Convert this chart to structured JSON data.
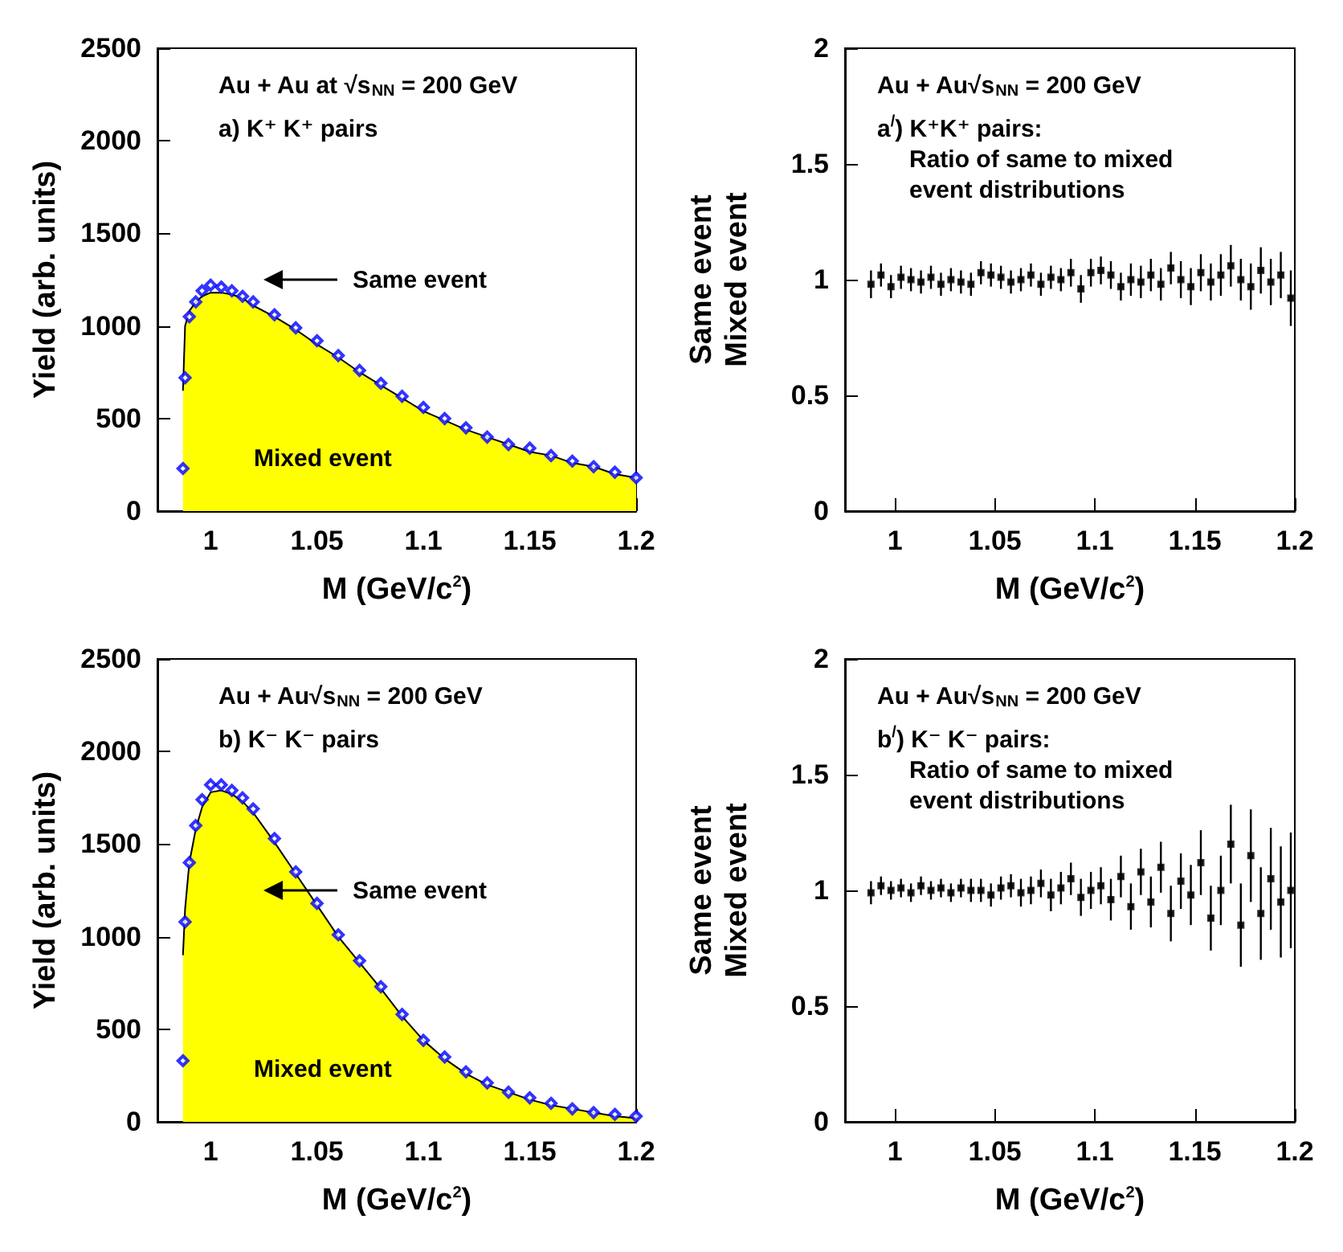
{
  "chart_data": [
    {
      "type": "area",
      "xlabel": "M (GeV/c$^{2}$)",
      "ylabel": "Yield (arb. units)",
      "xlim": [
        0.975,
        1.2
      ],
      "ylim": [
        0,
        2500
      ],
      "xticks": [
        1,
        1.05,
        1.1,
        1.15,
        1.2
      ],
      "yticks": [
        0,
        500,
        1000,
        1500,
        2000,
        2500
      ],
      "grid": false,
      "x": [
        0.987,
        0.988,
        0.99,
        0.993,
        0.996,
        1.0,
        1.005,
        1.01,
        1.015,
        1.02,
        1.03,
        1.04,
        1.05,
        1.06,
        1.07,
        1.08,
        1.09,
        1.1,
        1.11,
        1.12,
        1.13,
        1.14,
        1.15,
        1.16,
        1.17,
        1.18,
        1.19,
        1.2
      ],
      "series": [
        {
          "color": "#ffff00",
          "values": [
            650,
            1000,
            1080,
            1130,
            1160,
            1180,
            1180,
            1170,
            1150,
            1110,
            1050,
            980,
            900,
            830,
            750,
            680,
            610,
            540,
            490,
            440,
            400,
            360,
            320,
            300,
            260,
            240,
            200,
            180
          ]
        },
        {
          "type": "scatter",
          "marker": "diamond",
          "color": "#0000ff",
          "values": [
            230,
            720,
            1050,
            1130,
            1190,
            1220,
            1210,
            1190,
            1160,
            1130,
            1060,
            990,
            920,
            840,
            760,
            690,
            620,
            560,
            500,
            450,
            400,
            360,
            340,
            300,
            270,
            240,
            210,
            180
          ]
        }
      ],
      "annotations": [
        "Au + Au at √s$_{NN}$ = 200 GeV",
        "a) K⁺ K⁺ pairs",
        "Same event",
        "Mixed event"
      ]
    },
    {
      "type": "scatter",
      "xlabel": "M (GeV/c$^{2}$)",
      "ylabel": "Same event\nMixed event",
      "xlim": [
        0.975,
        1.2
      ],
      "ylim": [
        0,
        2
      ],
      "xticks": [
        1,
        1.05,
        1.1,
        1.15,
        1.2
      ],
      "yticks": [
        0,
        0.5,
        1,
        1.5,
        2
      ],
      "grid": false,
      "marker": "square",
      "x": [
        0.988,
        0.993,
        0.998,
        1.003,
        1.008,
        1.013,
        1.018,
        1.023,
        1.028,
        1.033,
        1.038,
        1.043,
        1.048,
        1.053,
        1.058,
        1.063,
        1.068,
        1.073,
        1.078,
        1.083,
        1.088,
        1.093,
        1.098,
        1.103,
        1.108,
        1.113,
        1.118,
        1.123,
        1.128,
        1.133,
        1.138,
        1.143,
        1.148,
        1.153,
        1.158,
        1.163,
        1.168,
        1.173,
        1.178,
        1.183,
        1.188,
        1.193,
        1.198
      ],
      "series": [
        {
          "color": "#000000",
          "values": [
            0.98,
            1.02,
            0.97,
            1.01,
            1.0,
            0.99,
            1.01,
            0.98,
            1.0,
            0.99,
            0.98,
            1.03,
            1.02,
            1.01,
            0.99,
            1.0,
            1.02,
            0.98,
            1.01,
            1.0,
            1.03,
            0.96,
            1.03,
            1.04,
            1.02,
            0.97,
            1.0,
            0.99,
            1.02,
            0.98,
            1.05,
            1.0,
            0.97,
            1.03,
            0.99,
            1.02,
            1.06,
            1.0,
            0.97,
            1.04,
            0.99,
            1.02,
            0.92
          ],
          "errors": [
            0.06,
            0.05,
            0.05,
            0.05,
            0.05,
            0.05,
            0.05,
            0.05,
            0.05,
            0.05,
            0.05,
            0.05,
            0.05,
            0.05,
            0.05,
            0.05,
            0.05,
            0.05,
            0.05,
            0.05,
            0.06,
            0.06,
            0.06,
            0.06,
            0.06,
            0.06,
            0.07,
            0.07,
            0.07,
            0.07,
            0.07,
            0.08,
            0.08,
            0.08,
            0.08,
            0.09,
            0.09,
            0.09,
            0.1,
            0.1,
            0.1,
            0.1,
            0.12
          ]
        }
      ],
      "annotations": [
        "Au + Au√s$_{NN}$ = 200 GeV",
        "a$^{/}$) K⁺K⁺ pairs:",
        "Ratio of same to mixed\nevent distributions"
      ]
    },
    {
      "type": "area",
      "xlabel": "M (GeV/c$^{2}$)",
      "ylabel": "Yield (arb. units)",
      "xlim": [
        0.975,
        1.2
      ],
      "ylim": [
        0,
        2500
      ],
      "xticks": [
        1,
        1.05,
        1.1,
        1.15,
        1.2
      ],
      "yticks": [
        0,
        500,
        1000,
        1500,
        2000,
        2500
      ],
      "grid": false,
      "x": [
        0.987,
        0.988,
        0.99,
        0.993,
        0.996,
        1.0,
        1.005,
        1.01,
        1.015,
        1.02,
        1.03,
        1.04,
        1.05,
        1.06,
        1.07,
        1.08,
        1.09,
        1.1,
        1.11,
        1.12,
        1.13,
        1.14,
        1.15,
        1.16,
        1.17,
        1.18,
        1.19,
        1.2
      ],
      "series": [
        {
          "color": "#ffff00",
          "values": [
            900,
            1150,
            1400,
            1580,
            1700,
            1780,
            1790,
            1770,
            1730,
            1670,
            1510,
            1340,
            1170,
            1000,
            860,
            720,
            570,
            440,
            340,
            260,
            200,
            160,
            120,
            90,
            70,
            50,
            30,
            20
          ]
        },
        {
          "type": "scatter",
          "marker": "diamond",
          "color": "#0000ff",
          "values": [
            330,
            1080,
            1400,
            1600,
            1740,
            1820,
            1820,
            1790,
            1750,
            1690,
            1530,
            1350,
            1180,
            1010,
            870,
            730,
            580,
            440,
            350,
            270,
            210,
            160,
            130,
            100,
            70,
            50,
            40,
            30
          ]
        }
      ],
      "annotations": [
        "Au + Au√s$_{NN}$ = 200 GeV",
        "b) K⁻ K⁻ pairs",
        "Same event",
        "Mixed event"
      ]
    },
    {
      "type": "scatter",
      "xlabel": "M (GeV/c$^{2}$)",
      "ylabel": "Same event\nMixed event",
      "xlim": [
        0.975,
        1.2
      ],
      "ylim": [
        0,
        2
      ],
      "xticks": [
        1,
        1.05,
        1.1,
        1.15,
        1.2
      ],
      "yticks": [
        0,
        0.5,
        1,
        1.5,
        2
      ],
      "grid": false,
      "marker": "square",
      "x": [
        0.988,
        0.993,
        0.998,
        1.003,
        1.008,
        1.013,
        1.018,
        1.023,
        1.028,
        1.033,
        1.038,
        1.043,
        1.048,
        1.053,
        1.058,
        1.063,
        1.068,
        1.073,
        1.078,
        1.083,
        1.088,
        1.093,
        1.098,
        1.103,
        1.108,
        1.113,
        1.118,
        1.123,
        1.128,
        1.133,
        1.138,
        1.143,
        1.148,
        1.153,
        1.158,
        1.163,
        1.168,
        1.173,
        1.178,
        1.183,
        1.188,
        1.193,
        1.198
      ],
      "series": [
        {
          "color": "#000000",
          "values": [
            0.99,
            1.02,
            1.0,
            1.01,
            0.99,
            1.02,
            1.0,
            1.01,
            0.99,
            1.01,
            1.0,
            1.0,
            0.98,
            1.01,
            1.02,
            0.99,
            1.0,
            1.03,
            0.98,
            1.01,
            1.05,
            0.97,
            1.0,
            1.02,
            0.96,
            1.06,
            0.93,
            1.08,
            0.95,
            1.1,
            0.9,
            1.04,
            0.98,
            1.12,
            0.88,
            1.0,
            1.2,
            0.85,
            1.15,
            0.9,
            1.05,
            0.95,
            1.0
          ],
          "errors": [
            0.05,
            0.04,
            0.04,
            0.04,
            0.04,
            0.04,
            0.04,
            0.04,
            0.04,
            0.04,
            0.05,
            0.05,
            0.05,
            0.05,
            0.05,
            0.06,
            0.06,
            0.06,
            0.07,
            0.07,
            0.07,
            0.08,
            0.08,
            0.08,
            0.09,
            0.09,
            0.1,
            0.1,
            0.11,
            0.11,
            0.12,
            0.12,
            0.13,
            0.14,
            0.14,
            0.15,
            0.17,
            0.18,
            0.2,
            0.2,
            0.22,
            0.24,
            0.25
          ]
        }
      ],
      "annotations": [
        "Au + Au√s$_{NN}$ = 200 GeV",
        "b$^{/}$) K⁻ K⁻ pairs:",
        "Ratio of same to mixed\nevent distributions"
      ]
    }
  ]
}
